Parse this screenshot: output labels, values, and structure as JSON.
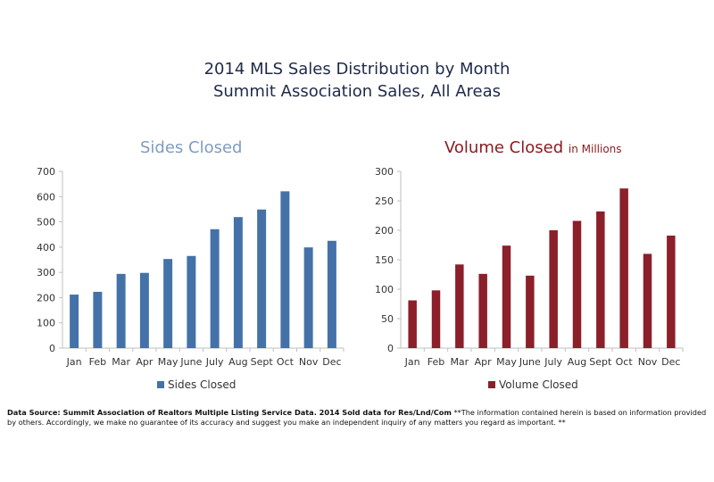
{
  "page": {
    "title_line1": "2014 MLS Sales Distribution by Month",
    "title_line2": "Summit Association Sales, All Areas",
    "footnote_source": "Data Source: Summit Association of Realtors Multiple Listing Service Data. 2014 Sold data for Res/Lnd/Com",
    "footnote_disclaimer": "**The information contained herein is based on information provided by others. Accordingly, we make no guarantee of its accuracy and suggest you make an independent inquiry of any matters you regard as important. **"
  },
  "colors": {
    "title": "#1f2a4a",
    "sides_title": "#7f9cc0",
    "sides_bar": "#4472a8",
    "volume_title": "#8a1a1f",
    "volume_bar": "#8b1f2a",
    "axis": "#bfbfbf"
  },
  "chart_data": [
    {
      "type": "bar",
      "title": "Sides Closed",
      "subtitle": "",
      "categories": [
        "Jan",
        "Feb",
        "Mar",
        "Apr",
        "May",
        "June",
        "July",
        "Aug",
        "Sept",
        "Oct",
        "Nov",
        "Dec"
      ],
      "series": [
        {
          "name": "Sides Closed",
          "values": [
            212,
            223,
            294,
            298,
            353,
            365,
            471,
            519,
            549,
            621,
            399,
            425
          ]
        }
      ],
      "yticks": [
        "0",
        "100",
        "200",
        "300",
        "400",
        "500",
        "600",
        "700"
      ],
      "ylim": [
        0,
        700
      ],
      "grid": false,
      "legend_position": "bottom"
    },
    {
      "type": "bar",
      "title": "Volume Closed",
      "subtitle": "in Millions",
      "categories": [
        "Jan",
        "Feb",
        "Mar",
        "Apr",
        "May",
        "June",
        "July",
        "Aug",
        "Sept",
        "Oct",
        "Nov",
        "Dec"
      ],
      "series": [
        {
          "name": "Volume Closed",
          "values": [
            81,
            98,
            142,
            126,
            174,
            123,
            200,
            216,
            232,
            271,
            160,
            191
          ]
        }
      ],
      "yticks": [
        "0",
        "50",
        "100",
        "150",
        "200",
        "250",
        "300"
      ],
      "ylim": [
        0,
        300
      ],
      "grid": false,
      "legend_position": "bottom"
    }
  ]
}
